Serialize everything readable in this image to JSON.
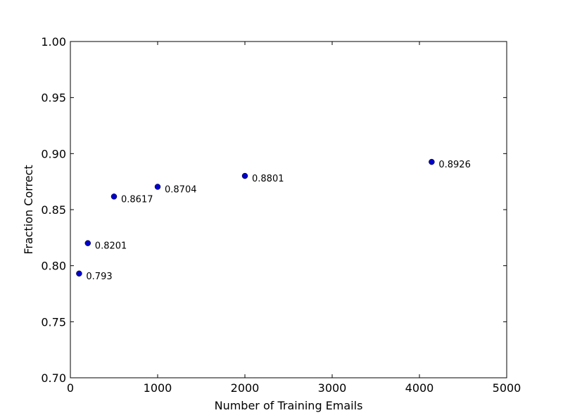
{
  "chart_data": {
    "type": "scatter",
    "title": "",
    "xlabel": "Number of Training Emails",
    "ylabel": "Fraction Correct",
    "xlim": [
      0,
      5000
    ],
    "ylim": [
      0.7,
      1.0
    ],
    "xticks": [
      "0",
      "1000",
      "2000",
      "3000",
      "4000",
      "5000"
    ],
    "yticks": [
      "0.70",
      "0.75",
      "0.80",
      "0.85",
      "0.90",
      "0.95",
      "1.00"
    ],
    "grid": false,
    "marker_color": "#0000cc",
    "points": [
      {
        "x": 100,
        "y": 0.793,
        "label": "0.793"
      },
      {
        "x": 200,
        "y": 0.8201,
        "label": "0.8201"
      },
      {
        "x": 500,
        "y": 0.8617,
        "label": "0.8617"
      },
      {
        "x": 1000,
        "y": 0.8704,
        "label": "0.8704"
      },
      {
        "x": 2000,
        "y": 0.8801,
        "label": "0.8801"
      },
      {
        "x": 4140,
        "y": 0.8926,
        "label": "0.8926"
      }
    ]
  }
}
